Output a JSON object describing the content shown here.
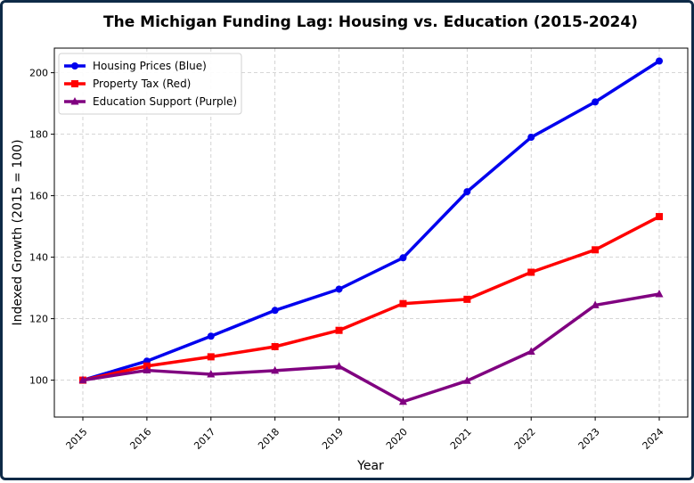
{
  "chart_data": {
    "type": "line",
    "title": "The Michigan Funding Lag: Housing vs. Education (2015-2024)",
    "xlabel": "Year",
    "ylabel": "Indexed Growth (2015 = 100)",
    "x": [
      "2015",
      "2016",
      "2017",
      "2018",
      "2019",
      "2020",
      "2021",
      "2022",
      "2023",
      "2024"
    ],
    "ylim": [
      88,
      208
    ],
    "yticks": [
      "100",
      "120",
      "140",
      "160",
      "180",
      "200"
    ],
    "grid": true,
    "legend_position": "top-left",
    "series": [
      {
        "name": "Housing Prices (Blue)",
        "color": "#0000ee",
        "marker": "circle",
        "values": [
          100,
          106.2,
          114.3,
          122.7,
          129.6,
          139.8,
          161.3,
          179.0,
          190.5,
          203.8
        ]
      },
      {
        "name": "Property Tax (Red)",
        "color": "#ff0000",
        "marker": "square",
        "values": [
          100,
          104.6,
          107.6,
          110.9,
          116.2,
          124.9,
          126.3,
          135.1,
          142.4,
          153.2
        ]
      },
      {
        "name": "Education Support (Purple)",
        "color": "#800080",
        "marker": "triangle",
        "values": [
          100,
          103.2,
          101.9,
          103.1,
          104.5,
          93.0,
          99.8,
          109.3,
          124.4,
          128.0
        ]
      }
    ]
  }
}
